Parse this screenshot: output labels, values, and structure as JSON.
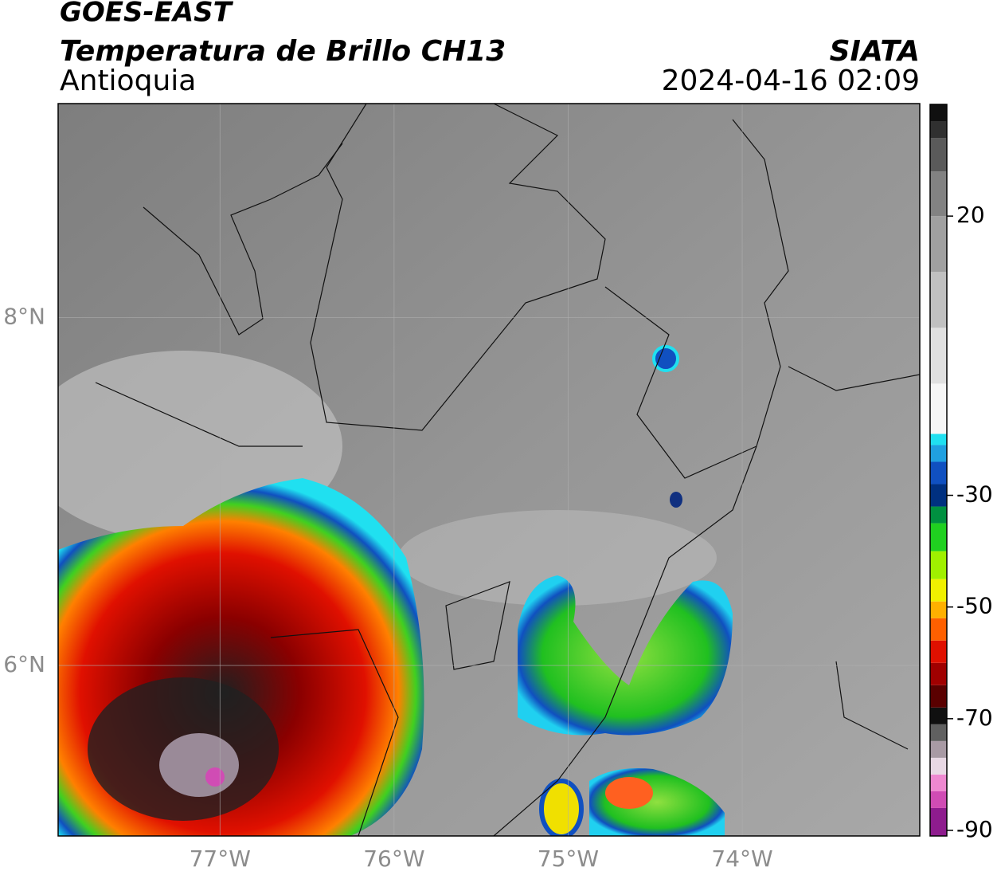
{
  "header": {
    "title": "GOES-EAST",
    "subtitle": "Temperatura de Brillo CH13",
    "region": "Antioquia",
    "source": "SIATA",
    "datetime": "2024-04-16 02:09"
  },
  "map": {
    "xlim": [
      -77.93,
      -72.98
    ],
    "ylim": [
      5.02,
      9.23
    ],
    "xticks": [
      {
        "value": -77,
        "label": "77°W"
      },
      {
        "value": -76,
        "label": "76°W"
      },
      {
        "value": -75,
        "label": "75°W"
      },
      {
        "value": -74,
        "label": "74°W"
      }
    ],
    "yticks": [
      {
        "value": 8,
        "label": "8°N"
      },
      {
        "value": 6,
        "label": "6°N"
      }
    ],
    "grid": true
  },
  "colorbar": {
    "lim": [
      -91,
      40
    ],
    "ticks": [
      20,
      -30,
      -50,
      -70,
      -90
    ],
    "colors": [
      [
        -91,
        "#8e1c8e"
      ],
      [
        -86,
        "#d04cb4"
      ],
      [
        -83,
        "#ee88d0"
      ],
      [
        -80,
        "#e8d8e4"
      ],
      [
        -77,
        "#a89aa4"
      ],
      [
        -74,
        "#606060"
      ],
      [
        -71,
        "#101010"
      ],
      [
        -68,
        "#5a0000"
      ],
      [
        -64,
        "#a00000"
      ],
      [
        -60,
        "#e01000"
      ],
      [
        -56,
        "#ff6000"
      ],
      [
        -52,
        "#ffb000"
      ],
      [
        -49,
        "#f0f000"
      ],
      [
        -45,
        "#a0f000"
      ],
      [
        -40,
        "#20d020"
      ],
      [
        -35,
        "#009040"
      ],
      [
        -32,
        "#003080"
      ],
      [
        -28,
        "#1050c0"
      ],
      [
        -24,
        "#20a0e0"
      ],
      [
        -21,
        "#20e0f0"
      ],
      [
        -19,
        "#f6f6f6"
      ],
      [
        -10,
        "#e0e0e0"
      ],
      [
        0,
        "#c0c0c0"
      ],
      [
        10,
        "#a0a0a0"
      ],
      [
        20,
        "#828282"
      ],
      [
        28,
        "#5a5a5a"
      ],
      [
        34,
        "#303030"
      ],
      [
        37,
        "#101010"
      ]
    ]
  }
}
